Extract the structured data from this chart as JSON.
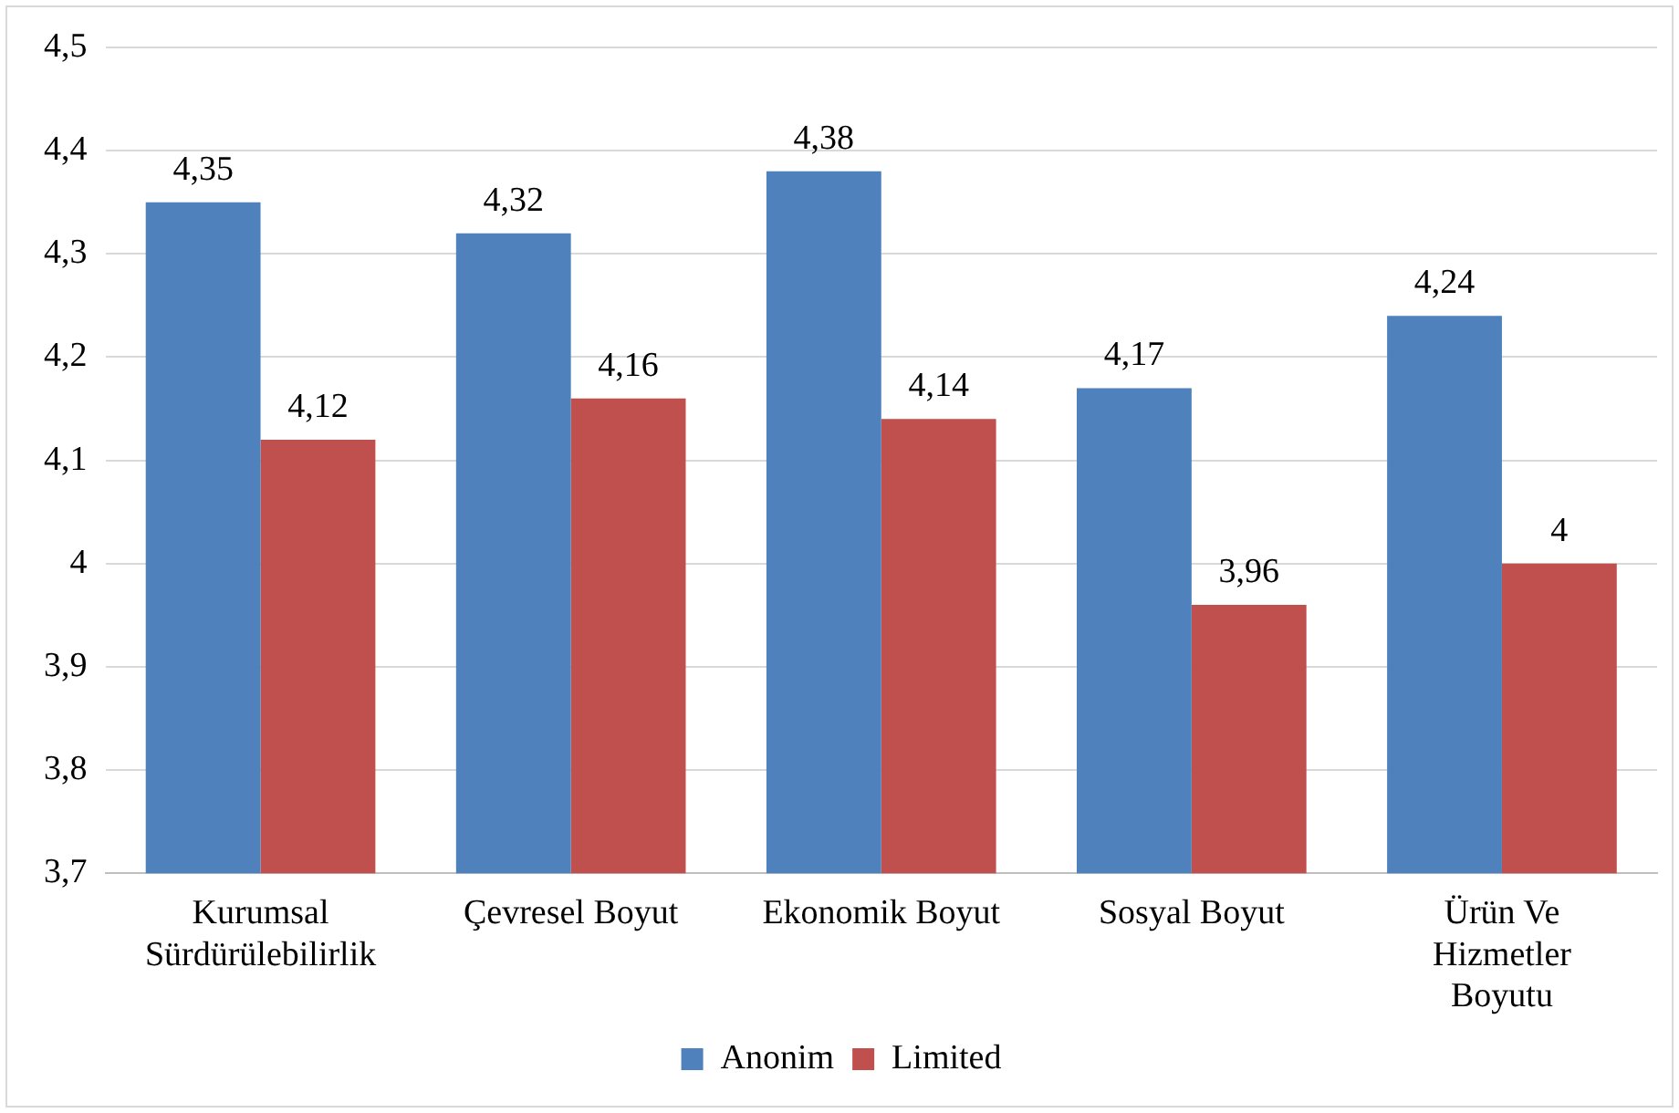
{
  "chart_data": {
    "type": "bar",
    "categories": [
      "Kurumsal Sürdürülebilirlik",
      "Çevresel Boyut",
      "Ekonomik Boyut",
      "Sosyal Boyut",
      "Ürün Ve Hizmetler Boyutu"
    ],
    "series": [
      {
        "name": "Anonim",
        "color": "#4f81bd",
        "values": [
          4.35,
          4.32,
          4.38,
          4.17,
          4.24
        ],
        "value_labels": [
          "4,35",
          "4,32",
          "4,38",
          "4,17",
          "4,24"
        ]
      },
      {
        "name": "Limited",
        "color": "#c0504d",
        "values": [
          4.12,
          4.16,
          4.14,
          3.96,
          4
        ],
        "value_labels": [
          "4,12",
          "4,16",
          "4,14",
          "3,96",
          "4"
        ]
      }
    ],
    "ylim": [
      3.7,
      4.5
    ],
    "yticks": [
      {
        "value": 3.7,
        "label": "3,7"
      },
      {
        "value": 3.8,
        "label": "3,8"
      },
      {
        "value": 3.9,
        "label": "3,9"
      },
      {
        "value": 4,
        "label": "4"
      },
      {
        "value": 4.1,
        "label": "4,1"
      },
      {
        "value": 4.2,
        "label": "4,2"
      },
      {
        "value": 4.3,
        "label": "4,3"
      },
      {
        "value": 4.4,
        "label": "4,4"
      },
      {
        "value": 4.5,
        "label": "4,5"
      }
    ],
    "grid": "y",
    "legend": "bottom"
  }
}
